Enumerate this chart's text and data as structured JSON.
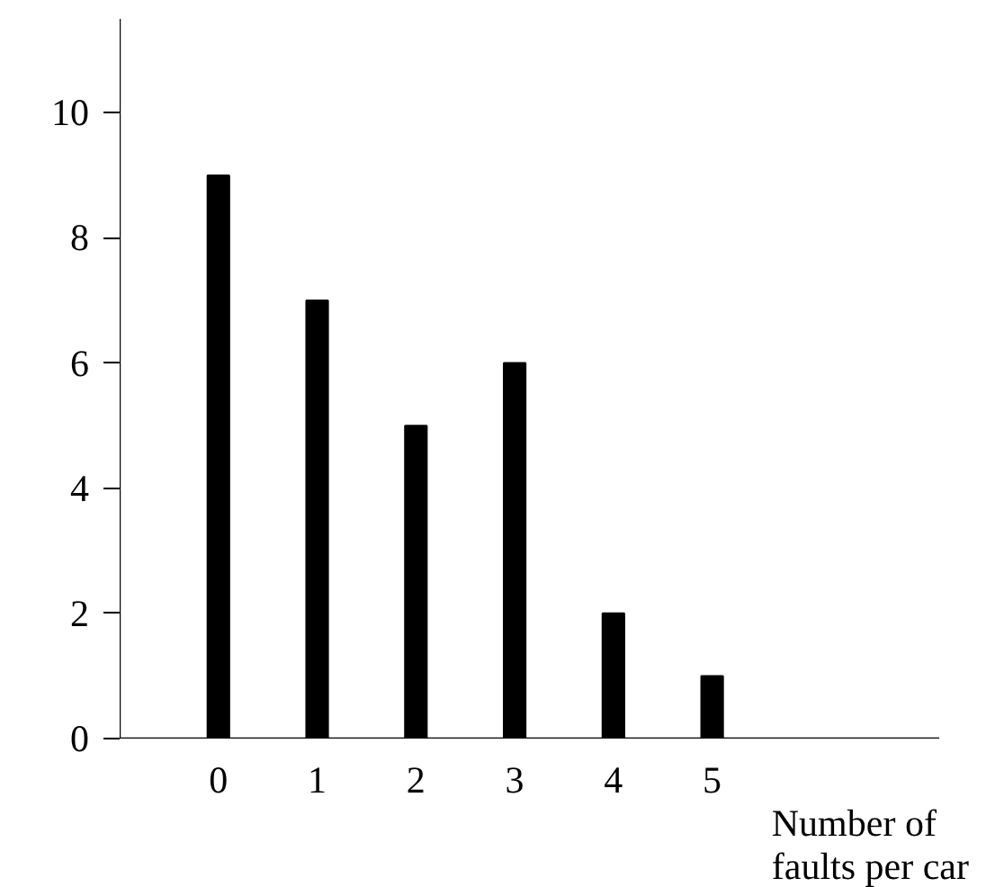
{
  "chart_data": {
    "type": "bar",
    "xlabel": "Number of faults per car",
    "categories": [
      "0",
      "1",
      "2",
      "3",
      "4",
      "5"
    ],
    "values": [
      9,
      7,
      5,
      6,
      2,
      1
    ],
    "color": "#000000",
    "ylim": [
      0,
      11.5
    ],
    "yticks": [
      0,
      2,
      4,
      6,
      8,
      10
    ],
    "grid": false
  }
}
